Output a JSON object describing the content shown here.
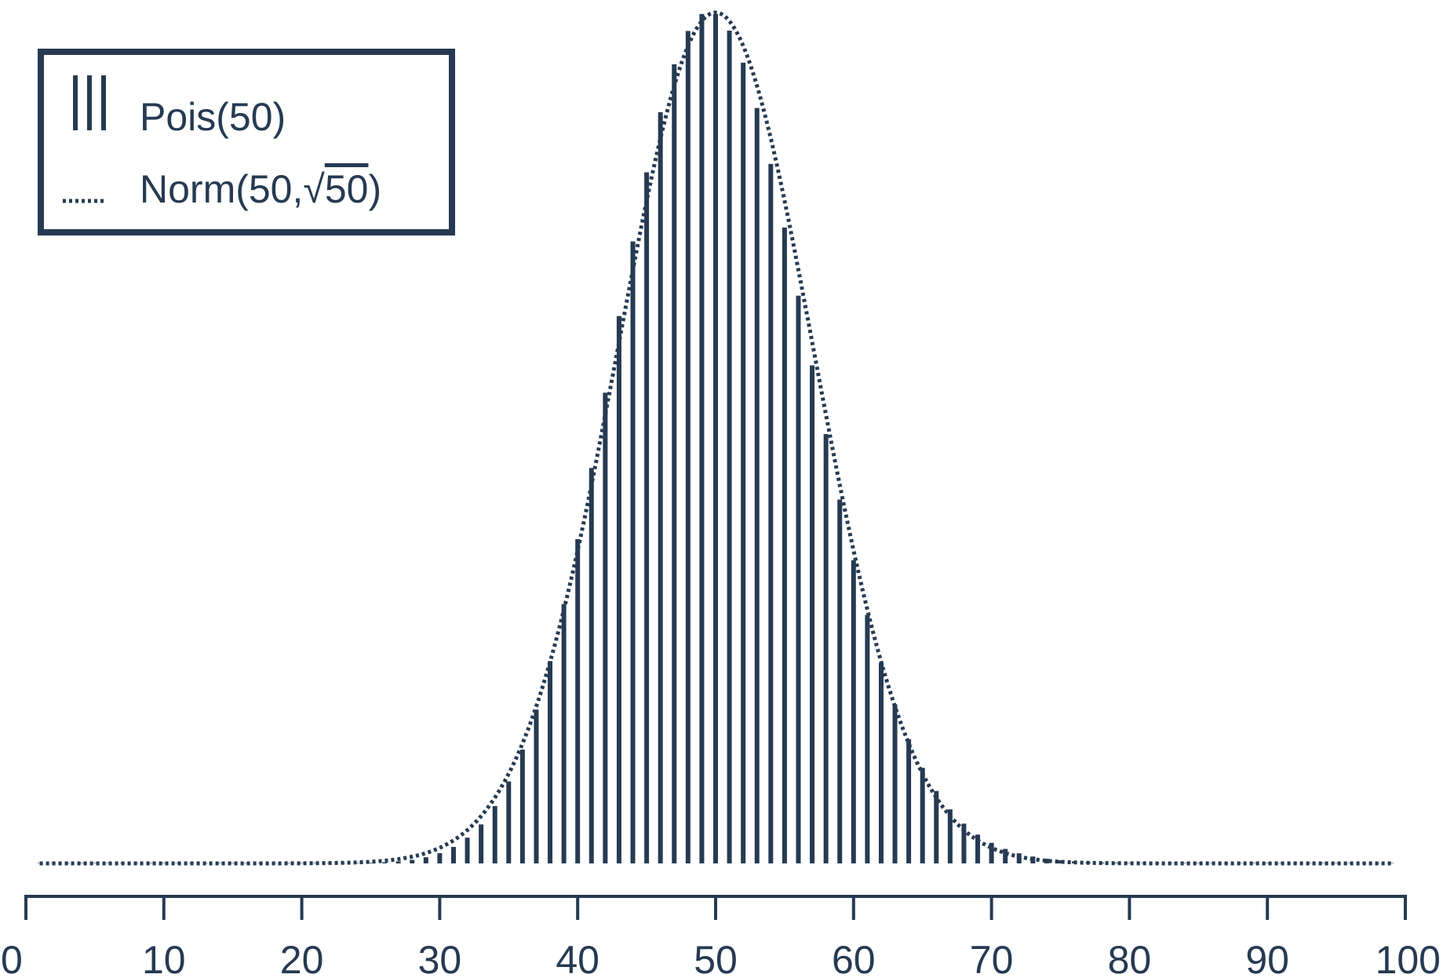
{
  "colors": {
    "ink": "#263a52",
    "background": "#ffffff"
  },
  "legend": {
    "placement": "top-left",
    "items": [
      {
        "label": "Pois(50)",
        "symbol": "bars"
      },
      {
        "label_prefix": "Norm(50,",
        "label_root": "50",
        "label_suffix": ")",
        "symbol": "dotted-line"
      }
    ]
  },
  "chart_data": {
    "type": "bar",
    "xlim": [
      0,
      100
    ],
    "x_ticks": [
      0,
      10,
      20,
      30,
      40,
      50,
      60,
      70,
      80,
      90,
      100
    ],
    "grid": false,
    "series": [
      {
        "name": "Pois(50)",
        "type": "bar",
        "distribution": "poisson",
        "lambda": 50,
        "x_range": [
          1,
          99
        ]
      },
      {
        "name": "Norm(50,√50)",
        "type": "line",
        "style": "dotted",
        "distribution": "normal",
        "mean": 50,
        "sd": 7.071,
        "x_range": [
          1,
          99
        ]
      }
    ]
  }
}
